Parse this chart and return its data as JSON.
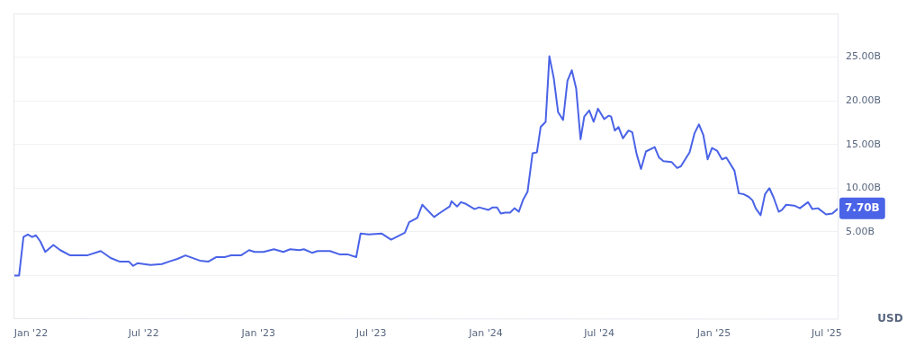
{
  "chart_data": {
    "type": "line",
    "ylabel": "USD",
    "x": [
      "2021-12-04",
      "2021-12-13",
      "2021-12-20",
      "2021-12-27",
      "2022-01-03",
      "2022-01-09",
      "2022-01-16",
      "2022-01-24",
      "2022-02-06",
      "2022-02-17",
      "2022-03-05",
      "2022-04-01",
      "2022-04-23",
      "2022-05-09",
      "2022-05-23",
      "2022-06-07",
      "2022-06-14",
      "2022-06-21",
      "2022-07-12",
      "2022-07-30",
      "2022-08-11",
      "2022-08-24",
      "2022-09-06",
      "2022-09-29",
      "2022-10-13",
      "2022-10-25",
      "2022-11-08",
      "2022-11-18",
      "2022-12-04",
      "2022-12-17",
      "2022-12-26",
      "2023-01-09",
      "2023-01-26",
      "2023-02-10",
      "2023-02-21",
      "2023-03-08",
      "2023-03-15",
      "2023-03-28",
      "2023-04-06",
      "2023-04-26",
      "2023-05-12",
      "2023-05-25",
      "2023-06-07",
      "2023-06-14",
      "2023-06-27",
      "2023-07-18",
      "2023-08-02",
      "2023-08-24",
      "2023-08-31",
      "2023-09-13",
      "2023-09-21",
      "2023-10-10",
      "2023-10-20",
      "2023-11-04",
      "2023-11-07",
      "2023-11-16",
      "2023-11-22",
      "2023-11-30",
      "2023-12-14",
      "2023-12-21",
      "2024-01-05",
      "2024-01-12",
      "2024-01-19",
      "2024-01-25",
      "2024-02-01",
      "2024-02-09",
      "2024-02-16",
      "2024-02-23",
      "2024-03-01",
      "2024-03-08",
      "2024-03-16",
      "2024-03-23",
      "2024-03-29",
      "2024-04-06",
      "2024-04-12",
      "2024-04-19",
      "2024-04-26",
      "2024-05-04",
      "2024-05-11",
      "2024-05-18",
      "2024-05-25",
      "2024-06-01",
      "2024-06-07",
      "2024-06-15",
      "2024-06-22",
      "2024-06-29",
      "2024-07-09",
      "2024-07-16",
      "2024-07-20",
      "2024-07-26",
      "2024-08-01",
      "2024-08-08",
      "2024-08-17",
      "2024-08-23",
      "2024-08-30",
      "2024-09-06",
      "2024-09-14",
      "2024-09-28",
      "2024-10-05",
      "2024-10-12",
      "2024-10-25",
      "2024-11-03",
      "2024-11-09",
      "2024-11-23",
      "2024-12-01",
      "2024-12-08",
      "2024-12-15",
      "2024-12-22",
      "2024-12-29",
      "2025-01-06",
      "2025-01-14",
      "2025-01-21",
      "2025-02-03",
      "2025-02-10",
      "2025-02-18",
      "2025-02-26",
      "2025-03-04",
      "2025-03-09",
      "2025-03-17",
      "2025-03-24",
      "2025-03-31",
      "2025-04-07",
      "2025-04-15",
      "2025-04-20",
      "2025-04-27",
      "2025-05-10",
      "2025-05-19",
      "2025-06-01",
      "2025-06-08",
      "2025-06-17",
      "2025-06-30",
      "2025-07-10",
      "2025-07-20"
    ],
    "series": [
      {
        "color": "#4a63e7",
        "values": [
          0,
          0,
          4.4,
          4.7,
          4.4,
          4.6,
          3.9,
          2.7,
          3.5,
          2.9,
          2.3,
          2.3,
          2.8,
          2.0,
          1.6,
          1.6,
          1.1,
          1.4,
          1.2,
          1.3,
          1.6,
          1.9,
          2.3,
          1.7,
          1.6,
          2.1,
          2.1,
          2.3,
          2.3,
          2.9,
          2.7,
          2.7,
          3.0,
          2.7,
          3.0,
          2.9,
          3.0,
          2.6,
          2.8,
          2.8,
          2.4,
          2.4,
          2.1,
          4.8,
          4.7,
          4.8,
          4.1,
          4.9,
          6.1,
          6.6,
          8.1,
          6.7,
          7.2,
          7.9,
          8.5,
          7.9,
          8.4,
          8.2,
          7.6,
          7.8,
          7.5,
          7.8,
          7.8,
          7.1,
          7.2,
          7.2,
          7.7,
          7.3,
          8.7,
          9.6,
          14.0,
          14.1,
          17.0,
          17.6,
          25.1,
          22.6,
          18.7,
          17.8,
          22.3,
          23.5,
          21.4,
          15.6,
          18.2,
          18.9,
          17.6,
          19.1,
          17.9,
          18.3,
          18.2,
          16.6,
          17.0,
          15.7,
          16.6,
          16.4,
          13.9,
          12.2,
          14.2,
          14.7,
          13.5,
          13.1,
          13.0,
          12.3,
          12.5,
          14.1,
          16.3,
          17.3,
          16.1,
          13.3,
          14.6,
          14.3,
          13.3,
          13.5,
          12.0,
          9.4,
          9.3,
          9.0,
          8.6,
          7.7,
          6.9,
          9.3,
          10.0,
          8.9,
          7.3,
          7.5,
          8.1,
          8.0,
          7.7,
          8.4,
          7.6,
          7.7,
          7.0,
          7.1,
          7.7
        ]
      }
    ],
    "xlim": [
      "2021-12-04",
      "2025-07-20"
    ],
    "xticks": [
      {
        "value": "2022-01-01",
        "label": "Jan '22"
      },
      {
        "value": "2022-07-01",
        "label": "Jul '22"
      },
      {
        "value": "2023-01-01",
        "label": "Jan '23"
      },
      {
        "value": "2023-07-01",
        "label": "Jul '23"
      },
      {
        "value": "2024-01-01",
        "label": "Jan '24"
      },
      {
        "value": "2024-07-01",
        "label": "Jul '24"
      },
      {
        "value": "2025-01-01",
        "label": "Jan '25"
      },
      {
        "value": "2025-07-01",
        "label": "Jul '25"
      }
    ],
    "ylim": [
      -5,
      30
    ],
    "yticks": [
      {
        "value": 0,
        "label": null
      },
      {
        "value": 5,
        "label": "5.00B"
      },
      {
        "value": 10,
        "label": "10.00B"
      },
      {
        "value": 15,
        "label": "15.00B"
      },
      {
        "value": 20,
        "label": "20.00B"
      },
      {
        "value": 25,
        "label": "25.00B"
      }
    ],
    "annotations": [
      {
        "text": "7.70B",
        "x": "2025-07-20",
        "y": 7.7
      }
    ],
    "grid": "y",
    "legend": false,
    "marker": "none",
    "line_style": "solid"
  }
}
